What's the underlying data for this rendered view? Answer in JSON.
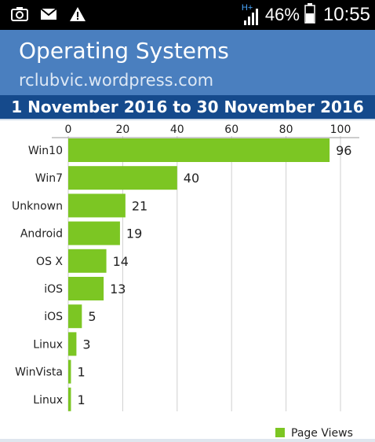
{
  "status_bar": {
    "battery_percent": "46%",
    "time": "10:55",
    "network_label": "H+",
    "icons": [
      "screenshot-icon",
      "mail-icon",
      "warning-icon",
      "signal-icon",
      "battery-icon"
    ]
  },
  "header": {
    "title": "Operating Systems",
    "subtitle": "rclubvic.wordpress.com",
    "date_range": "1 November 2016 to 30 November 2016"
  },
  "colors": {
    "bar": "#7cc623",
    "header_bg": "#4a7fbf",
    "date_bar_bg": "#154a8c"
  },
  "chart_data": {
    "type": "bar",
    "orientation": "horizontal",
    "categories": [
      "Win10",
      "Win7",
      "Unknown",
      "Android",
      "OS X",
      "iOS",
      "iOS",
      "Linux",
      "WinVista",
      "Linux"
    ],
    "series": [
      {
        "name": "Page Views",
        "values": [
          96,
          40,
          21,
          19,
          14,
          13,
          5,
          3,
          1,
          1
        ]
      }
    ],
    "xlim": [
      0,
      105
    ],
    "ticks": [
      0,
      20,
      40,
      60,
      80,
      100
    ],
    "grid": true,
    "legend_position": "bottom-right",
    "data_labels": true
  }
}
